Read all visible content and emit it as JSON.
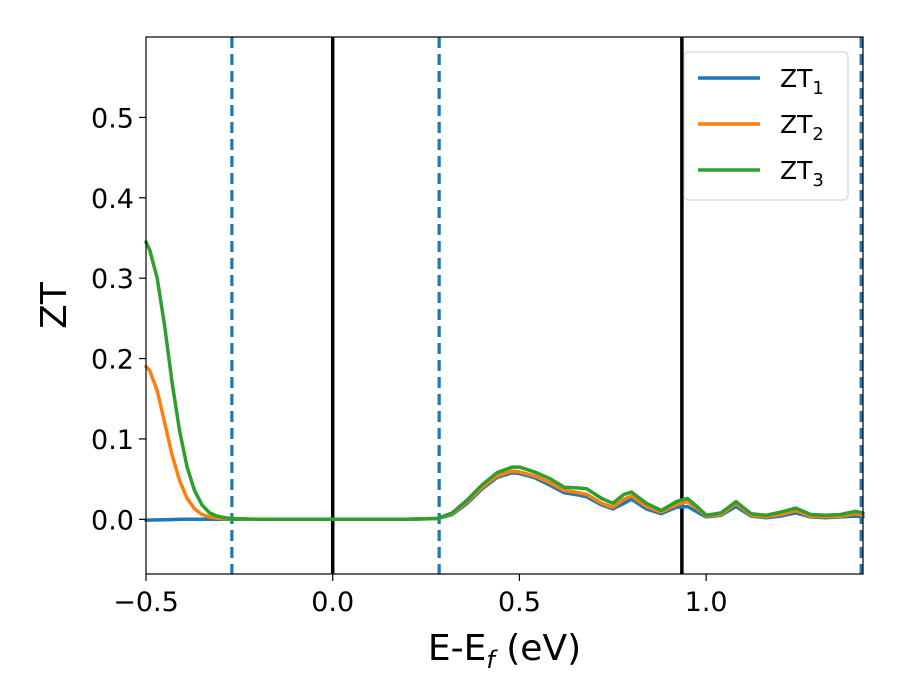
{
  "chart_data": {
    "type": "line",
    "xlabel": {
      "main": "E-E",
      "sub": "f",
      "unit": " (eV)"
    },
    "ylabel": "ZT",
    "xlim": [
      -0.5,
      1.42
    ],
    "ylim": [
      -0.068,
      0.6
    ],
    "xticks": [
      -0.5,
      0.0,
      0.5,
      1.0
    ],
    "xtick_labels": [
      "−0.5",
      "0.0",
      "0.5",
      "1.0"
    ],
    "yticks": [
      0.0,
      0.1,
      0.2,
      0.3,
      0.4,
      0.5
    ],
    "ytick_labels": [
      "0.0",
      "0.1",
      "0.2",
      "0.3",
      "0.4",
      "0.5"
    ],
    "legend_position": "top-right",
    "grid": false,
    "vlines": [
      {
        "x": -0.27,
        "style": "dashed",
        "color": "#1f77b4"
      },
      {
        "x": 0.0,
        "style": "solid",
        "color": "#000000"
      },
      {
        "x": 0.285,
        "style": "dashed",
        "color": "#1f77b4"
      },
      {
        "x": 0.935,
        "style": "solid",
        "color": "#000000"
      },
      {
        "x": 1.415,
        "style": "dashed",
        "color": "#1f77b4"
      }
    ],
    "series": [
      {
        "name": "ZT",
        "sub": "1",
        "color": "#1f77b4",
        "x": [
          -0.5,
          -0.45,
          -0.4,
          -0.35,
          -0.3,
          -0.2,
          0.0,
          0.2,
          0.28,
          0.32,
          0.36,
          0.4,
          0.44,
          0.48,
          0.5,
          0.54,
          0.58,
          0.62,
          0.66,
          0.68,
          0.72,
          0.75,
          0.78,
          0.8,
          0.84,
          0.88,
          0.92,
          0.95,
          0.98,
          1.0,
          1.04,
          1.08,
          1.12,
          1.16,
          1.2,
          1.24,
          1.28,
          1.32,
          1.36,
          1.4,
          1.42
        ],
        "y": [
          -0.001,
          -0.0005,
          0.0,
          0.0,
          0.0,
          0.0,
          0.0,
          0.0,
          0.001,
          0.006,
          0.02,
          0.038,
          0.052,
          0.058,
          0.057,
          0.052,
          0.043,
          0.033,
          0.03,
          0.028,
          0.018,
          0.013,
          0.02,
          0.025,
          0.013,
          0.007,
          0.015,
          0.016,
          0.008,
          0.003,
          0.005,
          0.016,
          0.004,
          0.002,
          0.004,
          0.008,
          0.003,
          0.002,
          0.003,
          0.004,
          0.003
        ]
      },
      {
        "name": "ZT",
        "sub": "2",
        "color": "#ff7f0e",
        "x": [
          -0.5,
          -0.49,
          -0.47,
          -0.45,
          -0.43,
          -0.41,
          -0.39,
          -0.37,
          -0.35,
          -0.33,
          -0.31,
          -0.29,
          -0.27,
          -0.2,
          0.0,
          0.2,
          0.28,
          0.32,
          0.36,
          0.4,
          0.44,
          0.48,
          0.5,
          0.54,
          0.58,
          0.62,
          0.66,
          0.68,
          0.72,
          0.75,
          0.78,
          0.8,
          0.84,
          0.88,
          0.92,
          0.95,
          0.98,
          1.0,
          1.04,
          1.08,
          1.12,
          1.16,
          1.2,
          1.24,
          1.28,
          1.32,
          1.36,
          1.4,
          1.42
        ],
        "y": [
          0.19,
          0.185,
          0.16,
          0.12,
          0.08,
          0.048,
          0.026,
          0.013,
          0.006,
          0.003,
          0.0015,
          0.0008,
          0.0005,
          0.0,
          0.0,
          0.0,
          0.001,
          0.007,
          0.022,
          0.04,
          0.054,
          0.06,
          0.059,
          0.054,
          0.046,
          0.036,
          0.033,
          0.031,
          0.02,
          0.015,
          0.025,
          0.029,
          0.016,
          0.009,
          0.018,
          0.022,
          0.012,
          0.004,
          0.006,
          0.02,
          0.005,
          0.003,
          0.006,
          0.011,
          0.004,
          0.003,
          0.004,
          0.007,
          0.005
        ]
      },
      {
        "name": "ZT",
        "sub": "3",
        "color": "#2ca02c",
        "x": [
          -0.5,
          -0.49,
          -0.47,
          -0.45,
          -0.43,
          -0.41,
          -0.39,
          -0.37,
          -0.35,
          -0.33,
          -0.31,
          -0.29,
          -0.27,
          -0.2,
          0.0,
          0.2,
          0.28,
          0.32,
          0.36,
          0.4,
          0.44,
          0.48,
          0.5,
          0.54,
          0.58,
          0.62,
          0.66,
          0.68,
          0.72,
          0.75,
          0.78,
          0.8,
          0.84,
          0.88,
          0.92,
          0.95,
          0.98,
          1.0,
          1.04,
          1.08,
          1.12,
          1.16,
          1.2,
          1.24,
          1.28,
          1.32,
          1.36,
          1.4,
          1.42
        ],
        "y": [
          0.345,
          0.335,
          0.3,
          0.24,
          0.17,
          0.11,
          0.065,
          0.036,
          0.018,
          0.008,
          0.004,
          0.002,
          0.001,
          0.0,
          0.0,
          0.0,
          0.001,
          0.008,
          0.024,
          0.043,
          0.058,
          0.065,
          0.065,
          0.059,
          0.051,
          0.04,
          0.039,
          0.038,
          0.026,
          0.02,
          0.031,
          0.034,
          0.02,
          0.011,
          0.022,
          0.026,
          0.014,
          0.005,
          0.008,
          0.022,
          0.007,
          0.005,
          0.009,
          0.014,
          0.006,
          0.005,
          0.006,
          0.01,
          0.008
        ]
      }
    ]
  }
}
